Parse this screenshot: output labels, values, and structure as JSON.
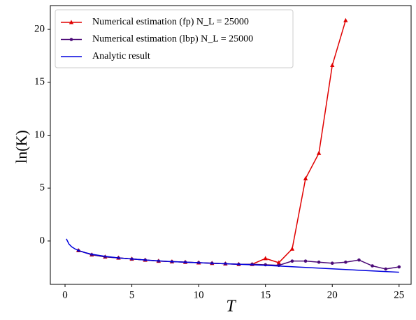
{
  "chart_data": {
    "type": "line",
    "xlabel": "T",
    "ylabel": "ln(K)",
    "xlim": [
      -1.1,
      25.9
    ],
    "ylim": [
      -4.1,
      22.25
    ],
    "xticks": [
      0,
      5,
      10,
      15,
      20,
      25
    ],
    "yticks": [
      0,
      5,
      10,
      15,
      20
    ],
    "legend": "upper left",
    "series": [
      {
        "name": "Numerical estimation (fp) N_L = 25000",
        "color": "#e00000",
        "marker": "triangle",
        "x": [
          1,
          2,
          3,
          4,
          5,
          6,
          7,
          8,
          9,
          10,
          11,
          12,
          13,
          14,
          15,
          16,
          17,
          18,
          19,
          20,
          21
        ],
        "values": [
          -0.9,
          -1.3,
          -1.5,
          -1.6,
          -1.7,
          -1.8,
          -1.9,
          -1.95,
          -2.0,
          -2.05,
          -2.1,
          -2.15,
          -2.2,
          -2.2,
          -1.65,
          -2.05,
          -0.75,
          5.9,
          8.3,
          16.6,
          20.85
        ]
      },
      {
        "name": "Numerical estimation (lbp) N_L = 25000",
        "color": "#4b0a78",
        "marker": "circle",
        "x": [
          1,
          2,
          3,
          4,
          5,
          6,
          7,
          8,
          9,
          10,
          11,
          12,
          13,
          14,
          15,
          16,
          17,
          18,
          19,
          20,
          21,
          22,
          23,
          24,
          25
        ],
        "values": [
          -0.9,
          -1.3,
          -1.5,
          -1.6,
          -1.7,
          -1.8,
          -1.9,
          -1.95,
          -2.0,
          -2.05,
          -2.1,
          -2.15,
          -2.2,
          -2.2,
          -2.25,
          -2.3,
          -1.9,
          -1.9,
          -2.0,
          -2.1,
          -2.0,
          -1.8,
          -2.35,
          -2.65,
          -2.45
        ]
      },
      {
        "name": "Analytic result",
        "color": "#0000dd",
        "marker": "none",
        "x": [
          0.1,
          0.3,
          0.5,
          0.75,
          1,
          1.5,
          2,
          3,
          4,
          5,
          6,
          8,
          10,
          12,
          15,
          18,
          21,
          25
        ],
        "values": [
          0.2,
          -0.3,
          -0.55,
          -0.75,
          -0.9,
          -1.1,
          -1.25,
          -1.45,
          -1.6,
          -1.7,
          -1.8,
          -1.95,
          -2.05,
          -2.15,
          -2.3,
          -2.5,
          -2.7,
          -2.95
        ]
      }
    ]
  }
}
